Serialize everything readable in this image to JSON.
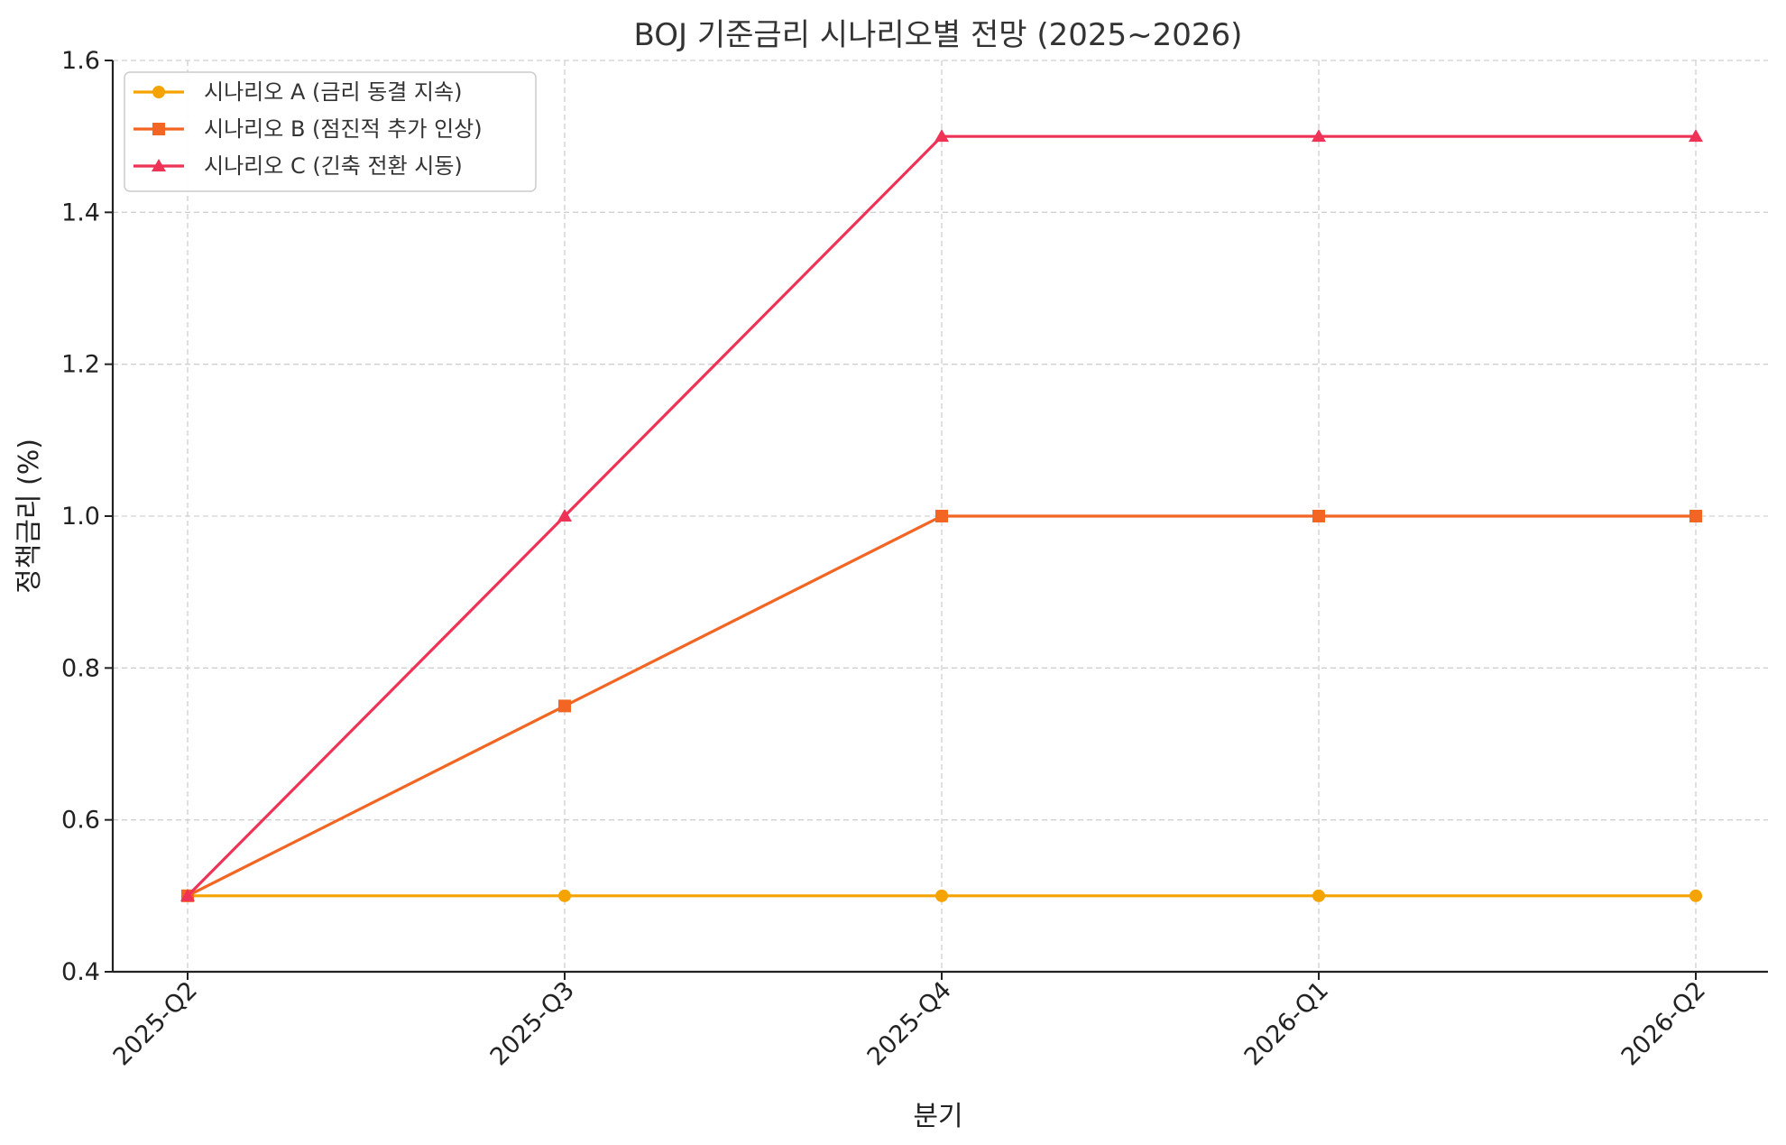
{
  "chart_data": {
    "type": "line",
    "title": "BOJ 기준금리 시나리오별 전망 (2025~2026)",
    "xlabel": "분기",
    "ylabel": "정책금리 (%)",
    "categories": [
      "2025-Q2",
      "2025-Q3",
      "2025-Q4",
      "2026-Q1",
      "2026-Q2"
    ],
    "ylim": [
      0.4,
      1.6
    ],
    "yticks": [
      "0.4",
      "0.6",
      "0.8",
      "1.0",
      "1.2",
      "1.4",
      "1.6"
    ],
    "grid": true,
    "legend_position": "top-left",
    "series": [
      {
        "name": "시나리오 A (금리 동결 지속)",
        "values": [
          0.5,
          0.5,
          0.5,
          0.5,
          0.5
        ],
        "color": "#F5A300",
        "marker": "circle"
      },
      {
        "name": "시나리오 B (점진적 추가 인상)",
        "values": [
          0.5,
          0.75,
          1.0,
          1.0,
          1.0
        ],
        "color": "#F26522",
        "marker": "square"
      },
      {
        "name": "시나리오 C (긴축 전환 시동)",
        "values": [
          0.5,
          1.0,
          1.5,
          1.5,
          1.5
        ],
        "color": "#EE3356",
        "marker": "triangle"
      }
    ]
  }
}
